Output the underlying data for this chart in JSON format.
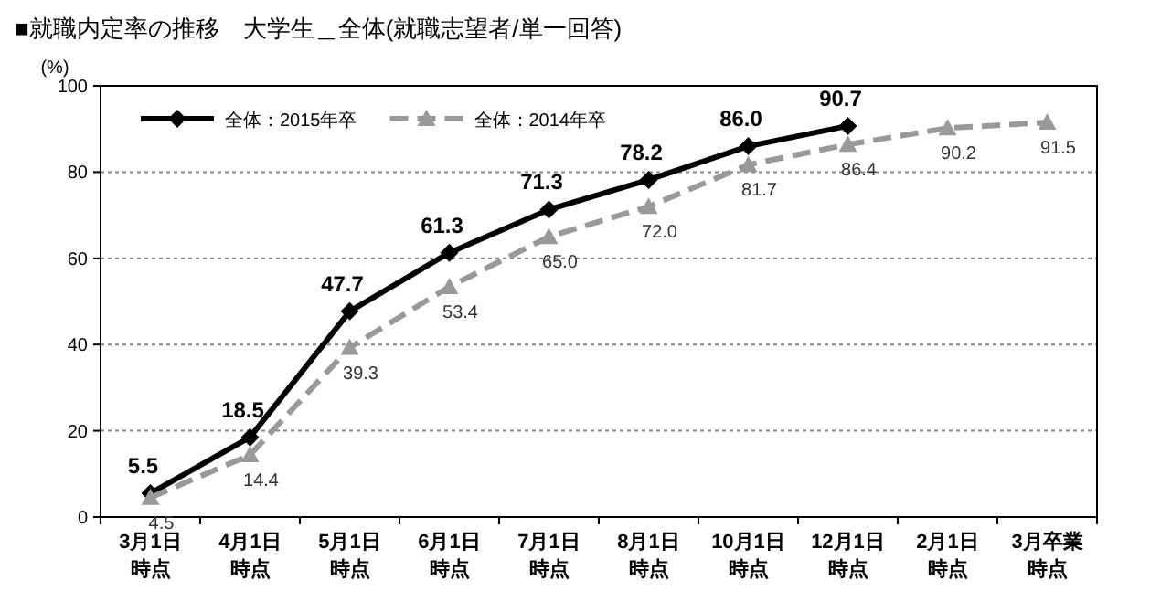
{
  "chart_data": {
    "type": "line",
    "title": "■就職内定率の推移　大学生＿全体(就職志望者/単一回答)",
    "ylabel": "(%)",
    "categories": [
      "3月1日時点",
      "4月1日時点",
      "5月1日時点",
      "6月1日時点",
      "7月1日時点",
      "8月1日時点",
      "10月1日時点",
      "12月1日時点",
      "2月1日時点",
      "3月卒業時点"
    ],
    "series": [
      {
        "name": "全体：2015年卒",
        "color": "#000000",
        "marker": "diamond",
        "line_style": "solid",
        "values": [
          5.5,
          18.5,
          47.7,
          61.3,
          71.3,
          78.2,
          86.0,
          90.7,
          null,
          null
        ],
        "value_labels": [
          "5.5",
          "18.5",
          "47.7",
          "61.3",
          "71.3",
          "78.2",
          "86.0",
          "90.7",
          null,
          null
        ]
      },
      {
        "name": "全体：2014年卒",
        "color": "#999999",
        "marker": "triangle",
        "line_style": "dashed",
        "values": [
          4.5,
          14.4,
          39.3,
          53.4,
          65.0,
          72.0,
          81.7,
          86.4,
          90.2,
          91.5
        ],
        "value_labels": [
          "4.5",
          "14.4",
          "39.3",
          "53.4",
          "65.0",
          "72.0",
          "81.7",
          "86.4",
          "90.2",
          "91.5"
        ]
      }
    ],
    "ylim": [
      0,
      100
    ],
    "yticks": [
      0,
      20,
      40,
      60,
      80,
      100
    ],
    "grid": "y",
    "legend": "top left"
  }
}
